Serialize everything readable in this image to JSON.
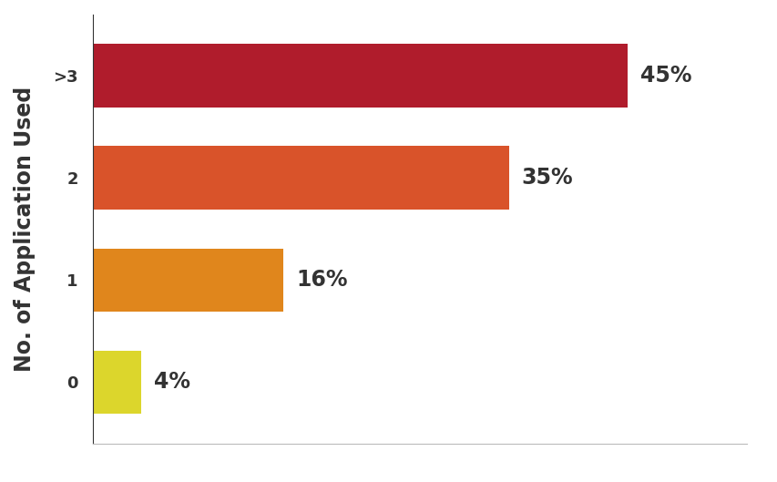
{
  "chart_data": {
    "type": "bar",
    "orientation": "horizontal",
    "y_label": "No. of Application Used",
    "categories": [
      "0",
      "1",
      "2",
      ">3"
    ],
    "values": [
      4,
      16,
      35,
      45
    ],
    "value_labels": [
      "4%",
      "16%",
      "35%",
      "45%"
    ],
    "colors": [
      "#dcd62c",
      "#e0861c",
      "#d9532a",
      "#b01c2c"
    ],
    "xlim": [
      0,
      55
    ],
    "xticks": [],
    "grid": false,
    "data_labels": true,
    "tick_labels": "y"
  }
}
